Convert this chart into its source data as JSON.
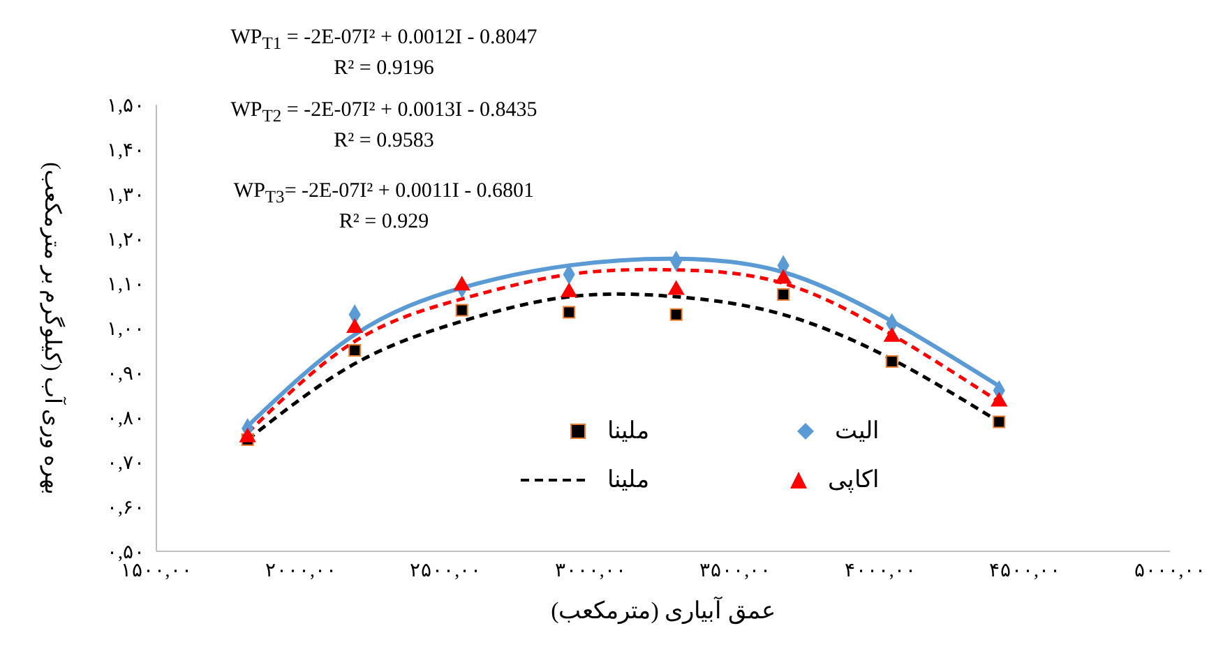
{
  "chart_data": {
    "type": "scatter",
    "xlabel": "عمق آبیاری (مترمکعب)",
    "ylabel": "بهره وری آب (کیلوگرم بر مترمکعب)",
    "annotations": [
      "WP$_{T1}$ = -2E-07I² + 0.0012I - 0.8047",
      "R² = 0.9196",
      "WP$_{T2}$ = -2E-07I² + 0.0013I - 0.8435",
      "R² = 0.9583",
      "WP$_{T3}$= -2E-07I² + 0.0011I - 0.6801",
      "R² = 0.929"
    ],
    "xlim": [
      1500,
      5000
    ],
    "xticks": [
      {
        "value": 1500,
        "label": "۱۵۰۰,۰۰"
      },
      {
        "value": 2000,
        "label": "۲۰۰۰,۰۰"
      },
      {
        "value": 2500,
        "label": "۲۵۰۰,۰۰"
      },
      {
        "value": 3000,
        "label": "۳۰۰۰,۰۰"
      },
      {
        "value": 3500,
        "label": "۳۵۰۰,۰۰"
      },
      {
        "value": 4000,
        "label": "۴۰۰۰,۰۰"
      },
      {
        "value": 4500,
        "label": "۴۵۰۰,۰۰"
      },
      {
        "value": 5000,
        "label": "۵۰۰۰,۰۰"
      }
    ],
    "ylim": [
      0.5,
      1.5
    ],
    "yticks": [
      {
        "value": 0.5,
        "label": "۰,۵۰"
      },
      {
        "value": 0.6,
        "label": "۰,۶۰"
      },
      {
        "value": 0.7,
        "label": "۰,۷۰"
      },
      {
        "value": 0.8,
        "label": "۰,۸۰"
      },
      {
        "value": 0.9,
        "label": "۰,۹۰"
      },
      {
        "value": 1.0,
        "label": "۱,۰۰"
      },
      {
        "value": 1.1,
        "label": "۱,۱۰"
      },
      {
        "value": 1.2,
        "label": "۱,۲۰"
      },
      {
        "value": 1.3,
        "label": "۱,۳۰"
      },
      {
        "value": 1.4,
        "label": "۱,۴۰"
      },
      {
        "value": 1.5,
        "label": "۱,۵۰"
      }
    ],
    "grid": false,
    "legend": "bottom",
    "x": [
      1815,
      2185,
      2555,
      2925,
      3295,
      3665,
      4040,
      4410
    ],
    "series": [
      {
        "name": "الیت",
        "marker": "diamond",
        "color": "#5b9bd5",
        "values": [
          0.775,
          1.03,
          1.09,
          1.12,
          1.15,
          1.14,
          1.01,
          0.86
        ]
      },
      {
        "name": "ملینا",
        "marker": "square",
        "color": "#000000",
        "values": [
          0.75,
          0.95,
          1.04,
          1.035,
          1.03,
          1.075,
          0.925,
          0.79
        ]
      },
      {
        "name": "اکاپی",
        "marker": "triangle",
        "color": "#ff0000",
        "values": [
          0.755,
          1.0,
          1.095,
          1.08,
          1.085,
          1.11,
          0.98,
          0.835
        ]
      },
      {
        "type": "line",
        "marker": "none",
        "line_style": "solid",
        "color": "#5b9bd5",
        "values": [
          0.78,
          0.985,
          1.09,
          1.14,
          1.155,
          1.125,
          1.015,
          0.87
        ]
      },
      {
        "type": "line",
        "marker": "none",
        "line_style": "dashed",
        "color": "#ff0000",
        "values": [
          0.765,
          0.97,
          1.065,
          1.12,
          1.13,
          1.1,
          0.985,
          0.835
        ]
      },
      {
        "name": "ملینا",
        "type": "line",
        "marker": "none",
        "line_style": "dashed",
        "color": "#000000",
        "values": [
          0.75,
          0.92,
          1.015,
          1.07,
          1.07,
          1.03,
          0.93,
          0.79
        ]
      }
    ]
  }
}
